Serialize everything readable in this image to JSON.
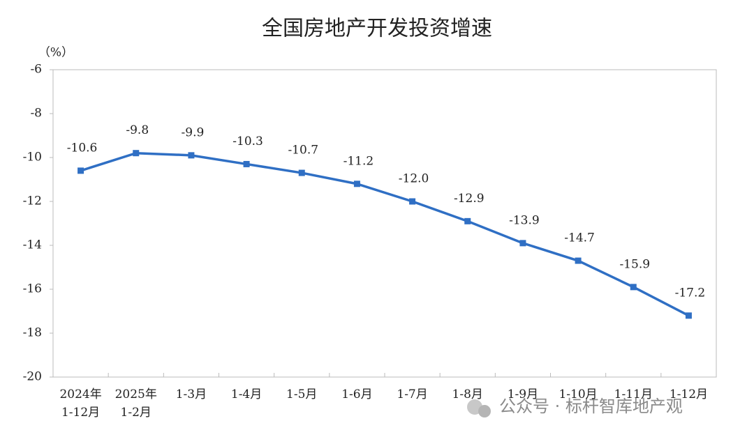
{
  "chart_data": {
    "type": "line",
    "title": "全国房地产开发投资增速",
    "y_label": "（%）",
    "categories": [
      "2024年\n1-12月",
      "2025年\n1-2月",
      "1-3月",
      "1-4月",
      "1-5月",
      "1-6月",
      "1-7月",
      "1-8月",
      "1-9月",
      "1-10月",
      "1-11月",
      "1-12月"
    ],
    "series": [
      {
        "name": "全国房地产开发投资增速",
        "color": "#2f6fc4",
        "values": [
          -10.6,
          -9.8,
          -9.9,
          -10.3,
          -10.7,
          -11.2,
          -12.0,
          -12.9,
          -13.9,
          -14.7,
          -15.9,
          -17.2
        ],
        "value_labels": [
          "-10.6",
          "-9.8",
          "-9.9",
          "-10.3",
          "-10.7",
          "-11.2",
          "-12.0",
          "-12.9",
          "-13.9",
          "-14.7",
          "-15.9",
          "-17.2"
        ]
      }
    ],
    "ylim": [
      -20,
      -6
    ],
    "yticks": [
      -20,
      -18,
      -16,
      -14,
      -12,
      -10,
      -8,
      -6
    ],
    "grid": false
  },
  "watermark": "公众号 · 标杆智库地产观"
}
